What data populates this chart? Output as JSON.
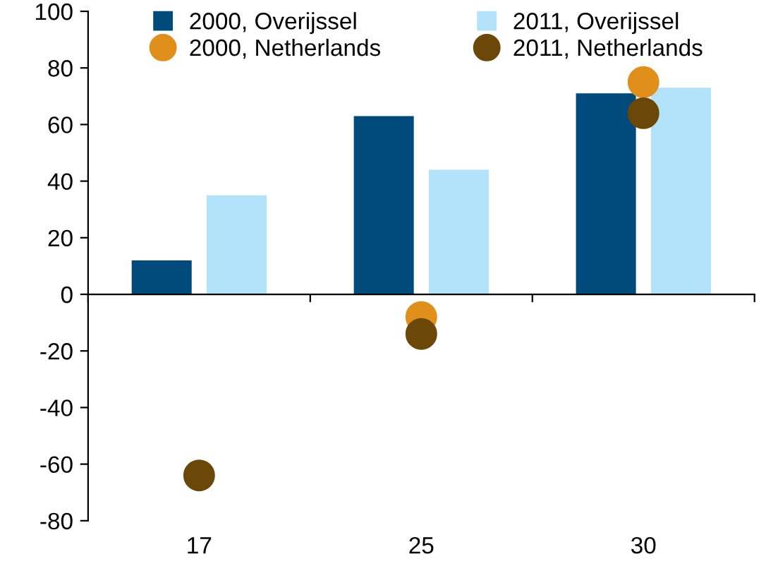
{
  "chart_data": {
    "type": "bar",
    "categories": [
      "17",
      "25",
      "30"
    ],
    "series": [
      {
        "name": "2000, Overijssel",
        "color": "#004a7c",
        "values": [
          12,
          63,
          71
        ]
      },
      {
        "name": "2011, Overijssel",
        "color": "#b3e2fb",
        "values": [
          35,
          44,
          73
        ]
      },
      {
        "name": "2000, Netherlands",
        "color": "#e0901a",
        "type": "scatter",
        "x": [
          "17",
          "25",
          "30"
        ],
        "values": [
          null,
          -8,
          75
        ]
      },
      {
        "name": "2011, Netherlands",
        "color": "#6b4808",
        "type": "scatter",
        "x": [
          "17",
          "25",
          "30"
        ],
        "values": [
          -64,
          -14,
          64
        ]
      }
    ],
    "ylim": [
      -80,
      100
    ],
    "yticks": [
      -80,
      -60,
      -40,
      -20,
      0,
      20,
      40,
      60,
      80,
      100
    ],
    "legend": "top",
    "marker": "circle"
  }
}
